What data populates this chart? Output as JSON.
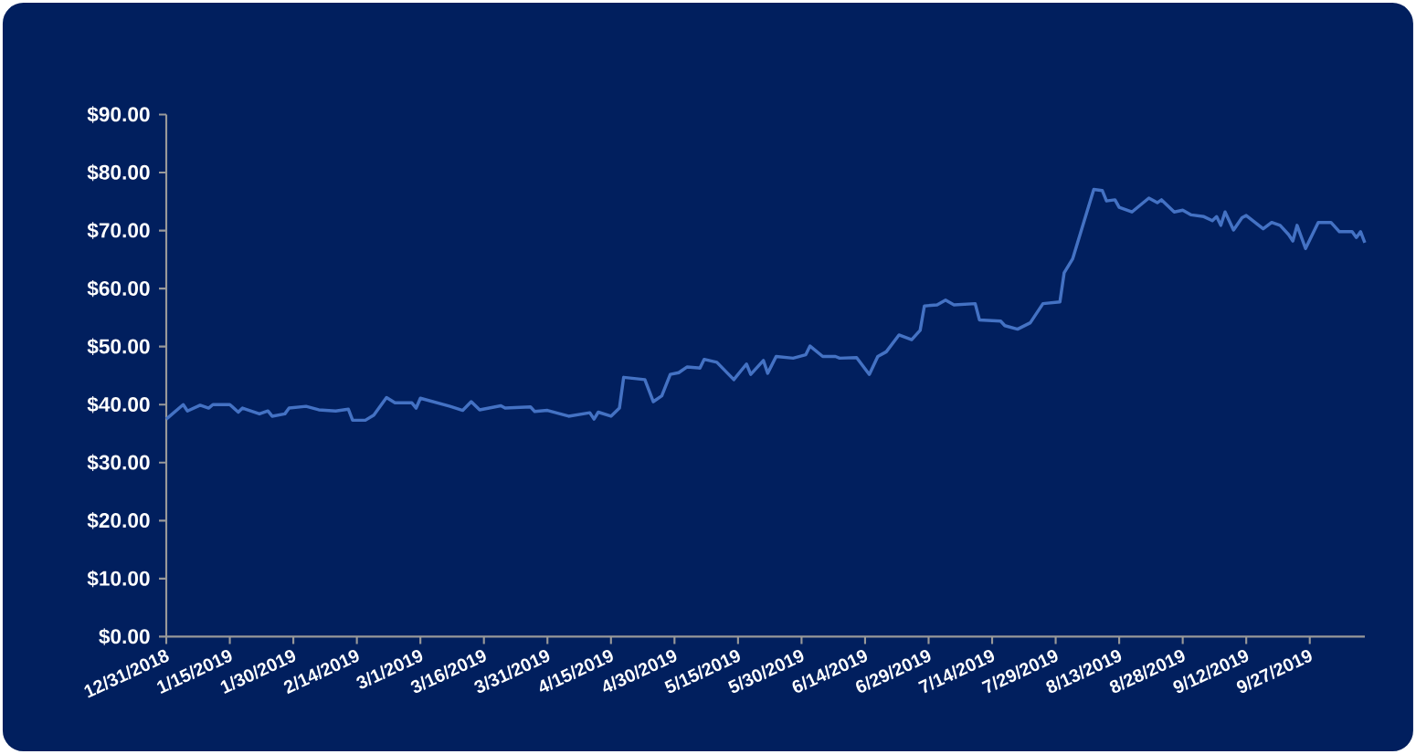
{
  "chart_data": {
    "type": "line",
    "color": "#4472c4",
    "x": [
      "2018-12-31",
      "2019-01-04",
      "2019-01-05",
      "2019-01-08",
      "2019-01-10",
      "2019-01-11",
      "2019-01-15",
      "2019-01-17",
      "2019-01-18",
      "2019-01-22",
      "2019-01-24",
      "2019-01-25",
      "2019-01-28",
      "2019-01-29",
      "2019-02-02",
      "2019-02-05",
      "2019-02-09",
      "2019-02-12",
      "2019-02-13",
      "2019-02-16",
      "2019-02-18",
      "2019-02-21",
      "2019-02-23",
      "2019-02-27",
      "2019-02-28",
      "2019-03-01",
      "2019-03-08",
      "2019-03-11",
      "2019-03-13",
      "2019-03-15",
      "2019-03-20",
      "2019-03-21",
      "2019-03-27",
      "2019-03-28",
      "2019-03-31",
      "2019-04-05",
      "2019-04-10",
      "2019-04-11",
      "2019-04-12",
      "2019-04-15",
      "2019-04-17",
      "2019-04-18",
      "2019-04-23",
      "2019-04-25",
      "2019-04-27",
      "2019-04-29",
      "2019-05-01",
      "2019-05-03",
      "2019-05-06",
      "2019-05-07",
      "2019-05-10",
      "2019-05-14",
      "2019-05-17",
      "2019-05-18",
      "2019-05-21",
      "2019-05-22",
      "2019-05-24",
      "2019-05-28",
      "2019-05-31",
      "2019-06-01",
      "2019-06-04",
      "2019-06-07",
      "2019-06-08",
      "2019-06-12",
      "2019-06-15",
      "2019-06-17",
      "2019-06-19",
      "2019-06-22",
      "2019-06-25",
      "2019-06-27",
      "2019-06-28",
      "2019-07-01",
      "2019-07-03",
      "2019-07-05",
      "2019-07-10",
      "2019-07-11",
      "2019-07-16",
      "2019-07-17",
      "2019-07-20",
      "2019-07-23",
      "2019-07-26",
      "2019-07-30",
      "2019-07-31",
      "2019-08-02",
      "2019-08-07",
      "2019-08-09",
      "2019-08-10",
      "2019-08-12",
      "2019-08-13",
      "2019-08-16",
      "2019-08-20",
      "2019-08-22",
      "2019-08-23",
      "2019-08-26",
      "2019-08-28",
      "2019-08-30",
      "2019-09-02",
      "2019-09-04",
      "2019-09-05",
      "2019-09-06",
      "2019-09-07",
      "2019-09-09",
      "2019-09-11",
      "2019-09-12",
      "2019-09-16",
      "2019-09-18",
      "2019-09-20",
      "2019-09-22",
      "2019-09-23",
      "2019-09-24",
      "2019-09-26",
      "2019-09-29",
      "2019-10-02",
      "2019-10-04",
      "2019-10-07",
      "2019-10-08",
      "2019-10-09",
      "2019-10-10"
    ],
    "values": [
      37.5,
      40.0,
      38.9,
      39.9,
      39.4,
      40.0,
      40.0,
      38.7,
      39.4,
      38.4,
      38.9,
      38.0,
      38.4,
      39.4,
      39.7,
      39.1,
      38.9,
      39.2,
      37.3,
      37.3,
      38.2,
      41.2,
      40.3,
      40.3,
      39.4,
      41.1,
      39.7,
      39.0,
      40.5,
      39.1,
      39.8,
      39.4,
      39.6,
      38.8,
      39.0,
      38.0,
      38.6,
      37.5,
      38.7,
      38.0,
      39.4,
      44.7,
      44.3,
      40.5,
      41.5,
      45.2,
      45.5,
      46.5,
      46.3,
      47.8,
      47.3,
      44.3,
      47.0,
      45.2,
      47.6,
      45.4,
      48.3,
      48.0,
      48.6,
      50.1,
      48.3,
      48.3,
      48.0,
      48.1,
      45.2,
      48.3,
      49.1,
      52.0,
      51.2,
      52.8,
      57.0,
      57.2,
      58.0,
      57.2,
      57.4,
      54.6,
      54.4,
      53.6,
      53.0,
      54.1,
      57.4,
      57.7,
      62.7,
      65.1,
      77.1,
      76.9,
      75.1,
      75.3,
      74.0,
      73.2,
      75.6,
      74.8,
      75.3,
      73.2,
      73.5,
      72.7,
      72.4,
      71.7,
      72.4,
      70.9,
      73.2,
      70.1,
      72.2,
      72.6,
      70.3,
      71.4,
      70.9,
      69.3,
      68.2,
      70.9,
      66.9,
      71.4,
      71.4,
      69.8,
      69.8,
      68.8,
      69.8,
      67.9
    ],
    "xlim": [
      "2018-12-31",
      "2019-10-10"
    ],
    "xticks": [
      {
        "value": "2018-12-31",
        "label": "12/31/2018"
      },
      {
        "value": "2019-01-15",
        "label": "1/15/2019"
      },
      {
        "value": "2019-01-30",
        "label": "1/30/2019"
      },
      {
        "value": "2019-02-14",
        "label": "2/14/2019"
      },
      {
        "value": "2019-03-01",
        "label": "3/1/2019"
      },
      {
        "value": "2019-03-16",
        "label": "3/16/2019"
      },
      {
        "value": "2019-03-31",
        "label": "3/31/2019"
      },
      {
        "value": "2019-04-15",
        "label": "4/15/2019"
      },
      {
        "value": "2019-04-30",
        "label": "4/30/2019"
      },
      {
        "value": "2019-05-15",
        "label": "5/15/2019"
      },
      {
        "value": "2019-05-30",
        "label": "5/30/2019"
      },
      {
        "value": "2019-06-14",
        "label": "6/14/2019"
      },
      {
        "value": "2019-06-29",
        "label": "6/29/2019"
      },
      {
        "value": "2019-07-14",
        "label": "7/14/2019"
      },
      {
        "value": "2019-07-29",
        "label": "7/29/2019"
      },
      {
        "value": "2019-08-13",
        "label": "8/13/2019"
      },
      {
        "value": "2019-08-28",
        "label": "8/28/2019"
      },
      {
        "value": "2019-09-12",
        "label": "9/12/2019"
      },
      {
        "value": "2019-09-27",
        "label": "9/27/2019"
      }
    ],
    "ylim": [
      0,
      90
    ],
    "yticks": [
      {
        "value": 0,
        "label": "$0.00"
      },
      {
        "value": 10,
        "label": "$10.00"
      },
      {
        "value": 20,
        "label": "$20.00"
      },
      {
        "value": 30,
        "label": "$30.00"
      },
      {
        "value": 40,
        "label": "$40.00"
      },
      {
        "value": 50,
        "label": "$50.00"
      },
      {
        "value": 60,
        "label": "$60.00"
      },
      {
        "value": 70,
        "label": "$70.00"
      },
      {
        "value": 80,
        "label": "$80.00"
      },
      {
        "value": 90,
        "label": "$90.00"
      }
    ]
  }
}
